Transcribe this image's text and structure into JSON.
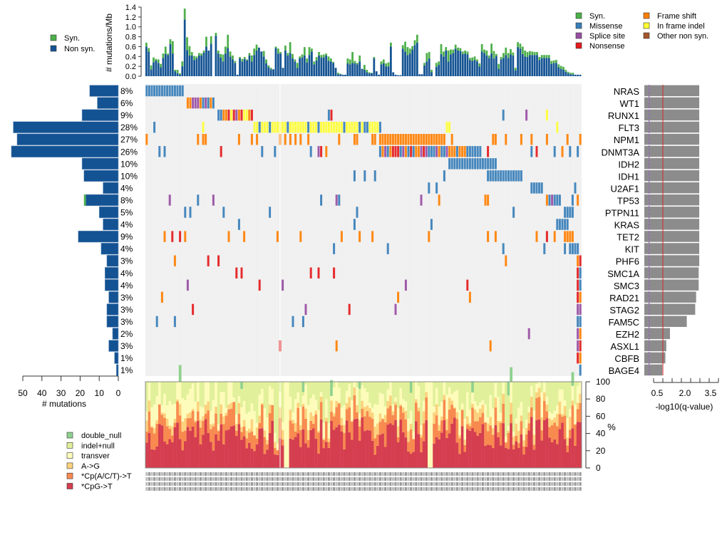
{
  "chart_data": [
    {
      "type": "bar",
      "panel": "mutation-rate",
      "title": "",
      "ylabel": "# mutations/Mb",
      "ylim": [
        0,
        1.4
      ],
      "yticks": [
        "0.0",
        "0.2",
        "0.4",
        "0.6",
        "0.8",
        "1.0",
        "1.2",
        "1.4"
      ],
      "legend": {
        "position": "top-left",
        "entries": [
          {
            "label": "Syn.",
            "color": "#4daf4a"
          },
          {
            "label": "Non syn.",
            "color": "#145393"
          }
        ]
      },
      "series": [
        {
          "name": "Non syn.",
          "values": [
            0.6,
            0.5,
            0.14,
            0.28,
            0.32,
            0.27,
            0.18,
            0.37,
            0.45,
            0.43,
            0.65,
            0.46,
            0.1,
            0.06,
            0.03,
            0.2,
            1.15,
            0.53,
            0.42,
            0.42,
            0.33,
            0.36,
            0.42,
            0.42,
            0.48,
            0.6,
            0.52,
            0.66,
            0.0,
            0.82,
            0.46,
            0.38,
            0.3,
            0.46,
            0.57,
            0.4,
            0.34,
            0.27,
            0.03,
            0.36,
            0.3,
            0.35,
            0.32,
            0.42,
            0.3,
            0.43,
            0.52,
            0.58,
            0.5,
            0.4,
            0.26,
            0.18,
            0.14,
            0.14,
            0.57,
            0.46,
            0.46,
            0.17,
            0.52,
            0.42,
            0.47,
            0.36,
            0.3,
            0.17,
            0.36,
            0.38,
            0.42,
            0.28,
            0.43,
            0.5,
            0.24,
            0.32,
            0.42,
            0.38,
            0.38,
            0.42,
            0.31,
            0.3,
            0.27,
            0.17,
            0.04,
            0.04,
            0.03,
            0.03,
            0.26,
            0.24,
            0.27,
            0.26,
            0.24,
            0.3,
            0.15,
            0.13,
            0.08,
            0.06,
            0.06,
            0.36,
            0.1,
            0.03,
            0.24,
            0.26,
            0.2,
            0.2,
            0.6,
            0.08,
            0.03,
            0.02,
            0.02,
            0.56,
            0.5,
            0.43,
            0.46,
            0.54,
            0.63,
            0.68,
            0.04,
            0.04,
            0.22,
            0.3,
            0.36,
            0.08,
            0.0,
            0.19,
            0.23,
            0.45,
            0.4,
            0.52,
            0.3,
            0.44,
            0.47,
            0.56,
            0.52,
            0.51,
            0.45,
            0.46,
            0.44,
            0.33,
            0.31,
            0.33,
            0.3,
            0.2,
            0.5,
            0.47,
            0.42,
            0.37,
            0.46,
            0.36,
            0.41,
            0.15,
            0.34,
            0.37,
            0.43,
            0.37,
            0.44,
            0.42,
            0.12,
            0.59,
            0.56,
            0.45,
            0.4,
            0.39,
            0.43,
            0.43,
            0.43,
            0.43,
            0.33,
            0.37,
            0.37,
            0.37,
            0.37,
            0.25,
            0.27,
            0.27,
            0.18,
            0.15,
            0.13,
            0.09,
            0.06,
            0.04,
            0.04,
            0.03,
            0.03,
            0.03
          ]
        },
        {
          "name": "Syn.",
          "values": [
            0.08,
            0.07,
            0.08,
            0.1,
            0.03,
            0.07,
            0.07,
            0.09,
            0.15,
            0.03,
            0.1,
            0.25,
            0.03,
            0.07,
            0.03,
            0.1,
            0.22,
            0.26,
            0.19,
            0.07,
            0.08,
            0.04,
            0.05,
            0.04,
            0.04,
            0.2,
            0.0,
            0.15,
            0.0,
            0.06,
            0.06,
            0.07,
            0.14,
            0.14,
            0.27,
            0.1,
            0.08,
            0.04,
            0.0,
            0.03,
            0.05,
            0.04,
            0.02,
            0.05,
            0.12,
            0.13,
            0.12,
            0.0,
            0.0,
            0.11,
            0.08,
            0.04,
            0.03,
            0.0,
            0.03,
            0.1,
            0.03,
            0.0,
            0.1,
            0.05,
            0.22,
            0.09,
            0.04,
            0.1,
            0.04,
            0.06,
            0.17,
            0.08,
            0.16,
            0.06,
            0.06,
            0.07,
            0.07,
            0.05,
            0.06,
            0.04,
            0.09,
            0.06,
            0.02,
            0.0,
            0.03,
            0.01,
            0.0,
            0.0,
            0.1,
            0.1,
            0.22,
            0.05,
            0.03,
            0.12,
            0.0,
            0.1,
            0.05,
            0.02,
            0.01,
            0.03,
            0.0,
            0.0,
            0.06,
            0.08,
            0.06,
            0.08,
            0.08,
            0.0,
            0.0,
            0.0,
            0.0,
            0.07,
            0.2,
            0.16,
            0.1,
            0.07,
            0.1,
            0.16,
            0.0,
            0.0,
            0.05,
            0.17,
            0.13,
            0.05,
            0.0,
            0.08,
            0.07,
            0.2,
            0.1,
            0.07,
            0.22,
            0.1,
            0.07,
            0.08,
            0.06,
            0.06,
            0.05,
            0.06,
            0.06,
            0.04,
            0.07,
            0.07,
            0.04,
            0.06,
            0.15,
            0.07,
            0.1,
            0.05,
            0.2,
            0.15,
            0.04,
            0.1,
            0.05,
            0.1,
            0.15,
            0.1,
            0.11,
            0.06,
            0.05,
            0.1,
            0.1,
            0.15,
            0.12,
            0.1,
            0.08,
            0.07,
            0.06,
            0.06,
            0.06,
            0.06,
            0.06,
            0.06,
            0.06,
            0.06,
            0.05,
            0.06,
            0.06,
            0.06,
            0.06,
            0.04,
            0.03,
            0.03,
            0.03,
            0.0,
            0.0,
            0.0,
            0.0,
            0.0
          ]
        }
      ]
    },
    {
      "type": "heatmap",
      "panel": "oncoprint",
      "legend": {
        "position": "top-right",
        "entries": [
          {
            "label": "Syn.",
            "color": "#4daf4a"
          },
          {
            "label": "Missense",
            "color": "#377eb8"
          },
          {
            "label": "Splice site",
            "color": "#984ea3"
          },
          {
            "label": "Nonsense",
            "color": "#e41a1c"
          },
          {
            "label": "Frame shift",
            "color": "#ff7f00"
          },
          {
            "label": "In frame indel",
            "color": "#ffff33"
          },
          {
            "label": "Other non syn.",
            "color": "#a65628"
          }
        ]
      },
      "genes": [
        "NRAS",
        "WT1",
        "RUNX1",
        "FLT3",
        "NPM1",
        "DNMT3A",
        "IDH2",
        "IDH1",
        "U2AF1",
        "TP53",
        "PTPN11",
        "KRAS",
        "TET2",
        "KIT",
        "PHF6",
        "SMC1A",
        "SMC3",
        "RAD21",
        "STAG2",
        "FAM5C",
        "EZH2",
        "ASXL1",
        "CBFB",
        "BAGE4"
      ],
      "percent_labels": [
        "8%",
        "6%",
        "9%",
        "28%",
        "27%",
        "26%",
        "10%",
        "10%",
        "4%",
        "8%",
        "5%",
        "4%",
        "9%",
        "4%",
        "3%",
        "4%",
        "4%",
        "3%",
        "3%",
        "3%",
        "2%",
        "3%",
        "1%",
        "1%"
      ],
      "num_samples": 170
    },
    {
      "type": "bar",
      "panel": "gene-mutation-counts",
      "orientation": "horizontal",
      "xlabel": "# mutations",
      "xlim": [
        50,
        0
      ],
      "xticks": [
        "50",
        "40",
        "30",
        "20",
        "10",
        "0"
      ],
      "categories": [
        "NRAS",
        "WT1",
        "RUNX1",
        "FLT3",
        "NPM1",
        "DNMT3A",
        "IDH2",
        "IDH1",
        "U2AF1",
        "TP53",
        "PTPN11",
        "KRAS",
        "TET2",
        "KIT",
        "PHF6",
        "SMC1A",
        "SMC3",
        "RAD21",
        "STAG2",
        "FAM5C",
        "EZH2",
        "ASXL1",
        "CBFB",
        "BAGE4"
      ],
      "series": [
        {
          "name": "Non syn.",
          "values": [
            15,
            11,
            19,
            55,
            53,
            56,
            19,
            18,
            8,
            17,
            10,
            8,
            21,
            9,
            6,
            7,
            7,
            5,
            6,
            6,
            3,
            5,
            2,
            1
          ]
        },
        {
          "name": "Syn.",
          "values": [
            0,
            0,
            0,
            0,
            0,
            0,
            0,
            0,
            0,
            1,
            0,
            0,
            0,
            0,
            0,
            0,
            0,
            0,
            0,
            0,
            0,
            0,
            0,
            0
          ]
        }
      ]
    },
    {
      "type": "bar",
      "panel": "q-values",
      "orientation": "horizontal",
      "xlabel": "-log10(q-value)",
      "xticks": [
        "0.5",
        "2.0",
        "3.5"
      ],
      "xlim": [
        0,
        4.0
      ],
      "reference_lines": [
        {
          "value": 0.5,
          "style": "dashed",
          "color": "#9467bd"
        },
        {
          "value": 1.0,
          "style": "solid",
          "color": "#d62728"
        }
      ],
      "categories": [
        "NRAS",
        "WT1",
        "RUNX1",
        "FLT3",
        "NPM1",
        "DNMT3A",
        "IDH2",
        "IDH1",
        "U2AF1",
        "TP53",
        "PTPN11",
        "KRAS",
        "TET2",
        "KIT",
        "PHF6",
        "SMC1A",
        "SMC3",
        "RAD21",
        "STAG2",
        "FAM5C",
        "EZH2",
        "ASXL1",
        "CBFB",
        "BAGE4"
      ],
      "values": [
        3.0,
        3.0,
        3.0,
        3.0,
        3.0,
        3.0,
        3.0,
        3.0,
        3.0,
        3.0,
        3.0,
        3.0,
        3.0,
        3.0,
        3.0,
        2.97,
        2.97,
        2.83,
        2.78,
        2.32,
        1.4,
        1.2,
        1.15,
        0.98
      ]
    },
    {
      "type": "bar",
      "panel": "mutation-spectrum",
      "stacked": true,
      "ylabel": "%",
      "ylim": [
        0,
        100
      ],
      "yticks": [
        "0",
        "20",
        "40",
        "60",
        "80",
        "100"
      ],
      "legend": {
        "position": "bottom-left",
        "entries": [
          {
            "label": "double_null",
            "color": "#8fd18f"
          },
          {
            "label": "indel+null",
            "color": "#e1f09a"
          },
          {
            "label": "transver",
            "color": "#fefcba"
          },
          {
            "label": "A->G",
            "color": "#fdd27e"
          },
          {
            "label": "*Cp(A/C/T)->T",
            "color": "#f88a50"
          },
          {
            "label": "*CpG->T",
            "color": "#d53e4f"
          }
        ]
      },
      "num_samples": 170
    }
  ]
}
